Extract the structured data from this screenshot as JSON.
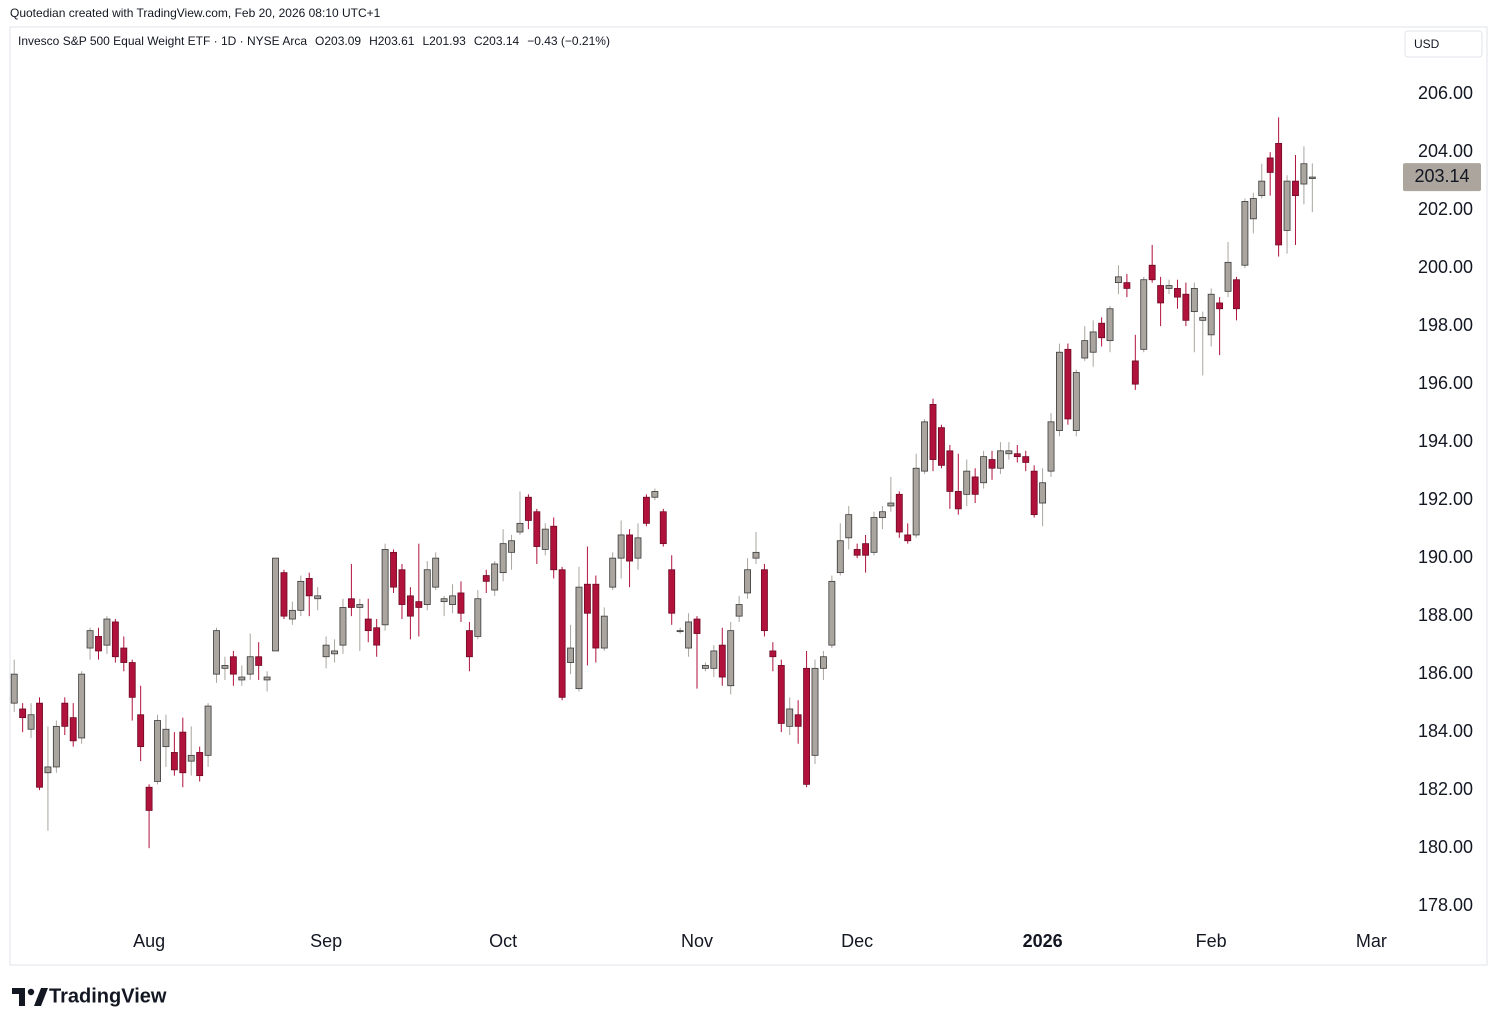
{
  "page": {
    "credit": "Quotedian created with TradingView.com, Feb 20, 2026 08:10 UTC+1",
    "brand": "TradingView"
  },
  "chart_data": {
    "type": "candlestick",
    "title": "Invesco S&P 500 Equal Weight ETF · 1D · NYSE Arca",
    "ohlc_header": [
      "O203.09",
      "H203.61",
      "L201.93",
      "C203.14",
      "−0.43 (−0.21%)"
    ],
    "currency": "USD",
    "up_color": "#aaa59f",
    "down_color": "#b0123c",
    "grid": false,
    "xlim": [
      -0.5,
      164.4
    ],
    "xticks": [
      {
        "value": 16,
        "label": "Aug"
      },
      {
        "value": 37,
        "label": "Sep"
      },
      {
        "value": 58,
        "label": "Oct"
      },
      {
        "value": 81,
        "label": "Nov"
      },
      {
        "value": 100,
        "label": "Dec"
      },
      {
        "value": 122,
        "label": "2026"
      },
      {
        "value": 142,
        "label": "Feb"
      },
      {
        "value": 161,
        "label": "Mar"
      }
    ],
    "ylim": [
      177.35,
      208.28
    ],
    "yticks": [
      {
        "value": 178,
        "label": "178.00"
      },
      {
        "value": 180,
        "label": "180.00"
      },
      {
        "value": 182,
        "label": "182.00"
      },
      {
        "value": 184,
        "label": "184.00"
      },
      {
        "value": 186,
        "label": "186.00"
      },
      {
        "value": 188,
        "label": "188.00"
      },
      {
        "value": 190,
        "label": "190.00"
      },
      {
        "value": 192,
        "label": "192.00"
      },
      {
        "value": 194,
        "label": "194.00"
      },
      {
        "value": 196,
        "label": "196.00"
      },
      {
        "value": 198,
        "label": "198.00"
      },
      {
        "value": 200,
        "label": "200.00"
      },
      {
        "value": 202,
        "label": "202.00"
      },
      {
        "value": 204,
        "label": "204.00"
      },
      {
        "value": 206,
        "label": "206.00"
      }
    ],
    "last_price": {
      "value": 203.14,
      "label": "203.14"
    },
    "ohlc": [
      [
        185.0,
        186.5,
        184.7,
        186.0
      ],
      [
        184.8,
        185.0,
        184.0,
        184.5
      ],
      [
        184.1,
        185.0,
        183.8,
        184.6
      ],
      [
        185.0,
        185.2,
        182.0,
        182.1
      ],
      [
        182.6,
        184.2,
        180.6,
        182.8
      ],
      [
        182.8,
        184.4,
        182.6,
        184.2
      ],
      [
        185.0,
        185.2,
        183.9,
        184.2
      ],
      [
        184.5,
        185.0,
        183.5,
        183.7
      ],
      [
        183.8,
        186.1,
        183.6,
        186.0
      ],
      [
        186.9,
        187.6,
        186.5,
        187.5
      ],
      [
        187.3,
        187.6,
        186.5,
        186.8
      ],
      [
        187.0,
        188.0,
        186.7,
        187.9
      ],
      [
        187.8,
        187.9,
        186.4,
        186.6
      ],
      [
        186.9,
        187.3,
        186.1,
        186.4
      ],
      [
        186.4,
        186.5,
        184.4,
        185.2
      ],
      [
        184.6,
        185.6,
        183.0,
        183.5
      ],
      [
        182.1,
        182.2,
        180.0,
        181.3
      ],
      [
        182.3,
        184.6,
        182.2,
        184.4
      ],
      [
        183.5,
        184.6,
        182.8,
        184.1
      ],
      [
        183.3,
        184.0,
        182.5,
        182.7
      ],
      [
        184.0,
        184.5,
        182.1,
        182.6
      ],
      [
        183.0,
        184.2,
        182.5,
        183.2
      ],
      [
        183.3,
        183.5,
        182.3,
        182.5
      ],
      [
        183.2,
        185.0,
        182.8,
        184.9
      ],
      [
        186.0,
        187.6,
        185.7,
        187.5
      ],
      [
        186.2,
        186.6,
        185.8,
        186.3
      ],
      [
        186.6,
        186.8,
        185.6,
        186.0
      ],
      [
        185.8,
        186.3,
        185.6,
        185.9
      ],
      [
        186.0,
        187.4,
        185.8,
        186.6
      ],
      [
        186.6,
        187.1,
        185.8,
        186.3
      ],
      [
        185.8,
        186.1,
        185.4,
        185.9
      ],
      [
        186.8,
        190.0,
        186.8,
        190.0
      ],
      [
        189.5,
        189.6,
        187.9,
        188.0
      ],
      [
        187.9,
        188.5,
        187.7,
        188.2
      ],
      [
        188.2,
        189.4,
        188.0,
        189.2
      ],
      [
        189.3,
        189.5,
        188.0,
        188.7
      ],
      [
        188.6,
        189.0,
        188.2,
        188.7
      ],
      [
        186.6,
        187.3,
        186.2,
        187.0
      ],
      [
        186.7,
        187.2,
        186.4,
        186.8
      ],
      [
        187.0,
        188.6,
        186.7,
        188.3
      ],
      [
        188.6,
        189.8,
        188.0,
        188.3
      ],
      [
        188.3,
        188.6,
        186.8,
        188.4
      ],
      [
        187.9,
        188.6,
        187.1,
        187.5
      ],
      [
        187.6,
        187.9,
        186.6,
        187.0
      ],
      [
        187.7,
        190.5,
        187.5,
        190.3
      ],
      [
        190.2,
        190.3,
        188.8,
        189.0
      ],
      [
        189.6,
        189.8,
        187.9,
        188.4
      ],
      [
        188.7,
        189.0,
        187.2,
        188.0
      ],
      [
        188.5,
        190.5,
        187.3,
        188.3
      ],
      [
        188.4,
        189.9,
        188.2,
        189.6
      ],
      [
        189.0,
        190.2,
        188.9,
        190.0
      ],
      [
        188.5,
        188.7,
        188.0,
        188.6
      ],
      [
        188.4,
        189.1,
        188.1,
        188.7
      ],
      [
        188.8,
        189.2,
        187.8,
        188.1
      ],
      [
        187.5,
        187.8,
        186.1,
        186.6
      ],
      [
        187.3,
        188.9,
        187.2,
        188.6
      ],
      [
        189.4,
        189.6,
        188.8,
        189.2
      ],
      [
        188.9,
        189.9,
        188.7,
        189.8
      ],
      [
        189.5,
        191.0,
        189.2,
        190.5
      ],
      [
        190.2,
        190.8,
        189.6,
        190.6
      ],
      [
        190.9,
        192.3,
        190.8,
        191.2
      ],
      [
        192.1,
        192.2,
        191.0,
        191.3
      ],
      [
        191.6,
        191.7,
        189.8,
        190.4
      ],
      [
        190.3,
        191.2,
        190.1,
        191.0
      ],
      [
        191.1,
        191.4,
        189.3,
        189.6
      ],
      [
        189.6,
        189.7,
        185.1,
        185.2
      ],
      [
        186.4,
        187.7,
        186.0,
        186.9
      ],
      [
        185.5,
        189.7,
        185.4,
        189.0
      ],
      [
        189.1,
        190.4,
        186.3,
        188.1
      ],
      [
        189.1,
        189.4,
        186.4,
        186.9
      ],
      [
        186.9,
        188.3,
        186.8,
        188.0
      ],
      [
        189.0,
        190.2,
        188.9,
        190.0
      ],
      [
        190.0,
        191.3,
        189.3,
        190.8
      ],
      [
        190.8,
        191.0,
        189.0,
        189.9
      ],
      [
        190.0,
        191.2,
        189.6,
        190.7
      ],
      [
        192.1,
        192.2,
        191.1,
        191.2
      ],
      [
        192.1,
        192.4,
        192.0,
        192.3
      ],
      [
        191.6,
        191.7,
        190.4,
        190.5
      ],
      [
        189.6,
        190.1,
        187.7,
        188.1
      ],
      [
        187.5,
        187.6,
        187.4,
        187.5
      ],
      [
        186.9,
        188.1,
        186.6,
        187.8
      ],
      [
        187.9,
        188.0,
        185.5,
        187.4
      ],
      [
        186.2,
        186.4,
        186.1,
        186.3
      ],
      [
        186.2,
        187.0,
        185.9,
        186.8
      ],
      [
        187.0,
        187.6,
        185.6,
        185.9
      ],
      [
        185.6,
        187.8,
        185.3,
        187.5
      ],
      [
        188.0,
        188.7,
        187.8,
        188.4
      ],
      [
        188.8,
        190.0,
        188.6,
        189.6
      ],
      [
        190.0,
        190.9,
        189.8,
        190.2
      ],
      [
        189.6,
        189.8,
        187.3,
        187.5
      ],
      [
        186.8,
        187.1,
        186.1,
        186.6
      ],
      [
        186.3,
        186.5,
        184.0,
        184.3
      ],
      [
        184.2,
        185.2,
        183.9,
        184.8
      ],
      [
        184.6,
        185.1,
        183.6,
        184.2
      ],
      [
        186.2,
        186.8,
        182.1,
        182.2
      ],
      [
        183.2,
        186.5,
        182.9,
        186.2
      ],
      [
        186.2,
        186.8,
        185.8,
        186.6
      ],
      [
        187.0,
        189.4,
        186.9,
        189.2
      ],
      [
        189.5,
        191.2,
        189.4,
        190.6
      ],
      [
        190.7,
        191.8,
        190.3,
        191.5
      ],
      [
        190.3,
        190.5,
        190.0,
        190.1
      ],
      [
        190.5,
        190.8,
        189.5,
        190.1
      ],
      [
        190.2,
        191.6,
        190.1,
        191.4
      ],
      [
        191.4,
        191.8,
        191.0,
        191.6
      ],
      [
        191.8,
        192.8,
        191.6,
        191.9
      ],
      [
        192.2,
        192.3,
        190.7,
        190.9
      ],
      [
        190.8,
        191.2,
        190.5,
        190.6
      ],
      [
        190.8,
        193.6,
        190.7,
        193.1
      ],
      [
        193.0,
        194.8,
        192.9,
        194.7
      ],
      [
        195.3,
        195.5,
        193.0,
        193.4
      ],
      [
        194.5,
        194.6,
        193.1,
        193.2
      ],
      [
        193.7,
        193.9,
        191.7,
        192.3
      ],
      [
        192.3,
        193.6,
        191.5,
        191.7
      ],
      [
        192.2,
        193.4,
        191.8,
        193.0
      ],
      [
        192.8,
        193.1,
        191.9,
        192.2
      ],
      [
        192.6,
        193.7,
        192.4,
        193.5
      ],
      [
        193.4,
        193.7,
        192.7,
        193.1
      ],
      [
        193.1,
        194.0,
        192.9,
        193.7
      ],
      [
        193.6,
        194.0,
        193.4,
        193.7
      ],
      [
        193.6,
        193.9,
        193.3,
        193.5
      ],
      [
        193.5,
        193.7,
        193.0,
        193.3
      ],
      [
        193.0,
        193.2,
        191.4,
        191.5
      ],
      [
        191.9,
        193.1,
        191.1,
        192.6
      ],
      [
        193.0,
        195.0,
        192.8,
        194.7
      ],
      [
        194.4,
        197.4,
        194.2,
        197.1
      ],
      [
        197.2,
        197.4,
        194.6,
        194.8
      ],
      [
        194.4,
        196.5,
        194.2,
        196.4
      ],
      [
        196.9,
        198.0,
        196.8,
        197.5
      ],
      [
        197.1,
        198.2,
        196.6,
        197.8
      ],
      [
        198.1,
        198.3,
        197.3,
        197.6
      ],
      [
        197.5,
        198.7,
        197.1,
        198.6
      ],
      [
        199.5,
        200.1,
        199.1,
        199.7
      ],
      [
        199.5,
        199.8,
        199.0,
        199.3
      ],
      [
        196.8,
        197.7,
        195.8,
        196.0
      ],
      [
        197.2,
        199.7,
        197.1,
        199.6
      ],
      [
        200.1,
        200.8,
        199.5,
        199.6
      ],
      [
        199.4,
        199.7,
        198.0,
        198.8
      ],
      [
        199.3,
        199.6,
        199.1,
        199.4
      ],
      [
        199.3,
        199.6,
        198.6,
        199.0
      ],
      [
        199.1,
        199.5,
        198.0,
        198.2
      ],
      [
        198.5,
        199.5,
        197.1,
        199.3
      ],
      [
        198.2,
        198.5,
        196.3,
        198.3
      ],
      [
        197.7,
        199.3,
        197.3,
        199.1
      ],
      [
        198.8,
        199.0,
        197.0,
        198.6
      ],
      [
        199.2,
        200.9,
        199.0,
        200.2
      ],
      [
        199.6,
        199.7,
        198.2,
        198.6
      ],
      [
        200.1,
        202.4,
        200.0,
        202.3
      ],
      [
        201.7,
        202.6,
        201.2,
        202.4
      ],
      [
        202.5,
        203.6,
        202.4,
        203.0
      ],
      [
        203.8,
        204.0,
        202.5,
        203.3
      ],
      [
        204.3,
        205.2,
        200.4,
        200.8
      ],
      [
        201.3,
        203.2,
        200.5,
        203.0
      ],
      [
        203.0,
        203.9,
        200.8,
        202.5
      ],
      [
        202.9,
        204.2,
        202.2,
        203.6
      ],
      [
        203.09,
        203.61,
        201.93,
        203.14
      ]
    ]
  }
}
